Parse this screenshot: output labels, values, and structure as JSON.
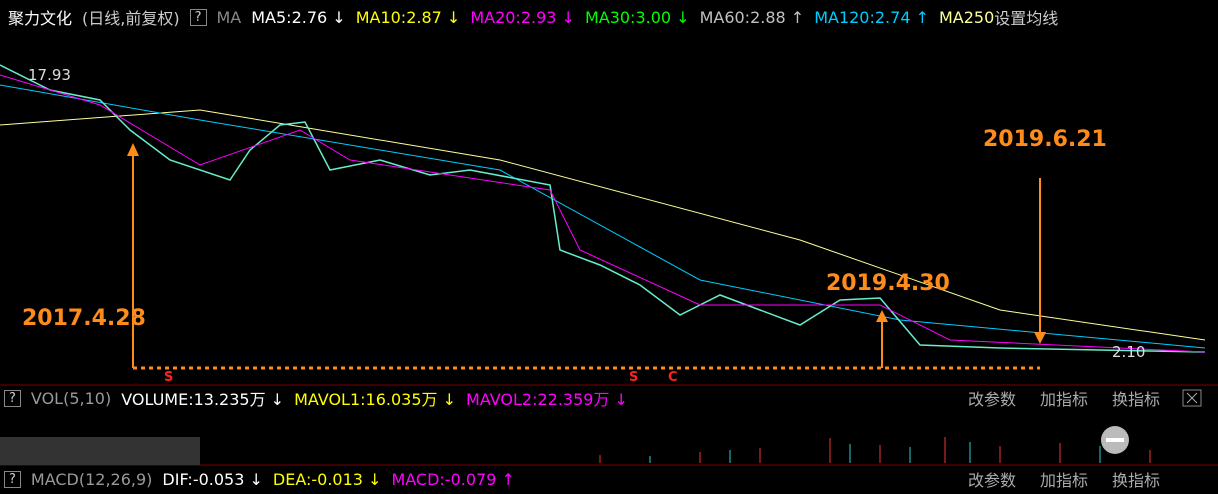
{
  "header": {
    "name": "聚力文化",
    "period": "(日线,前复权)",
    "help": "?",
    "ma_label": "MA",
    "indicators": [
      {
        "text": "MA5:2.76 ↓",
        "color": "#ffffff"
      },
      {
        "text": "MA10:2.87 ↓",
        "color": "#ffff00"
      },
      {
        "text": "MA20:2.93 ↓",
        "color": "#ff00ff"
      },
      {
        "text": "MA30:3.00 ↓",
        "color": "#00ff00"
      },
      {
        "text": "MA60:2.88 ↑",
        "color": "#c0c0c0"
      },
      {
        "text": "MA120:2.74 ↑",
        "color": "#00ccff"
      },
      {
        "text": "MA250",
        "color": "#ffff99"
      }
    ],
    "settings": "设置均线"
  },
  "price_chart": {
    "high_label": "17.93",
    "low_label": "2.10",
    "annotations": [
      "2017.4.28",
      "2019.4.30",
      "2019.6.21"
    ],
    "markers": [
      "S",
      "S",
      "C"
    ]
  },
  "volume_panel": {
    "help": "?",
    "title": "VOL(5,10)",
    "indicators": [
      {
        "text": "VOLUME:13.235万 ↓",
        "color": "#ffffff"
      },
      {
        "text": "MAVOL1:16.035万 ↓",
        "color": "#ffff00"
      },
      {
        "text": "MAVOL2:22.359万 ↓",
        "color": "#ff00ff"
      }
    ],
    "buttons": [
      "改参数",
      "加指标",
      "换指标"
    ]
  },
  "macd_panel": {
    "help": "?",
    "title": "MACD(12,26,9)",
    "indicators": [
      {
        "text": "DIF:-0.053 ↓",
        "color": "#ffffff"
      },
      {
        "text": "DEA:-0.013 ↓",
        "color": "#ffff00"
      },
      {
        "text": "MACD:-0.079 ↑",
        "color": "#ff00ff"
      }
    ],
    "buttons": [
      "改参数",
      "加指标",
      "换指标"
    ]
  }
}
